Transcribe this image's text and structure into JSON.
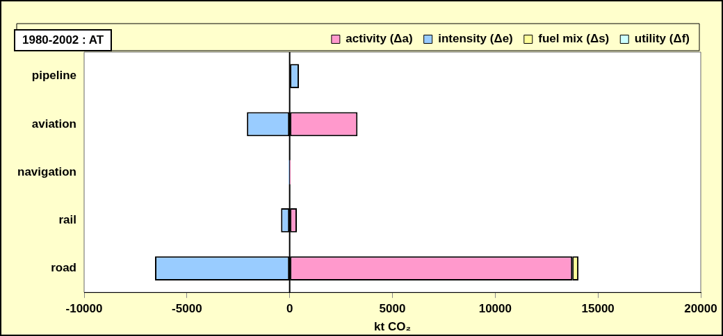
{
  "chart_data": {
    "type": "bar",
    "orientation": "horizontal",
    "stacked": true,
    "title": "1980-2002 : AT",
    "xlabel": "kt CO₂",
    "categories": [
      "pipeline",
      "aviation",
      "navigation",
      "rail",
      "road"
    ],
    "series": [
      {
        "name": "activity (Δa)",
        "color": "#ff99cc",
        "values": [
          null,
          3300,
          50,
          350,
          13750
        ]
      },
      {
        "name": "intensity (Δe)",
        "color": "#99ccff",
        "values": [
          450,
          -2080,
          -50,
          -420,
          -6550
        ]
      },
      {
        "name": "fuel mix (Δs)",
        "color": "#ffff99",
        "values": [
          null,
          null,
          null,
          null,
          300
        ]
      },
      {
        "name": "utility (Δf)",
        "color": "#ccffff",
        "values": [
          null,
          null,
          null,
          null,
          null
        ]
      }
    ],
    "xlim": [
      -10000,
      20000
    ],
    "xticks": [
      -10000,
      -5000,
      0,
      5000,
      10000,
      15000,
      20000
    ],
    "grid": false,
    "legend": "top right",
    "ref_lines": [
      {
        "axis": "x",
        "value": 0,
        "color": "#000000"
      }
    ]
  }
}
